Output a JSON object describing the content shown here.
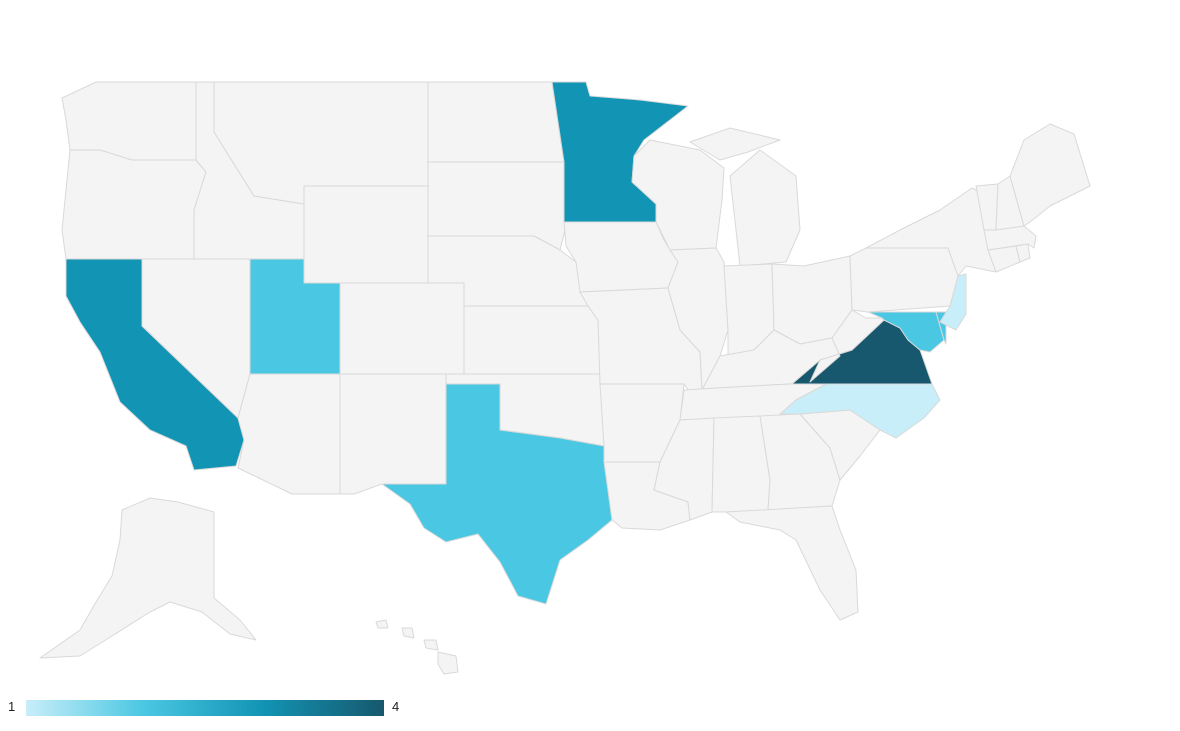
{
  "legend": {
    "min": "1",
    "max": "4",
    "colors": [
      "#c8eef9",
      "#4ac7e2",
      "#1294b4",
      "#17586e"
    ]
  },
  "default_fill": "#f4f4f4",
  "border_color": "#d9d9d9",
  "states": [
    {
      "id": "WA",
      "value": null
    },
    {
      "id": "OR",
      "value": null
    },
    {
      "id": "CA",
      "value": 3
    },
    {
      "id": "NV",
      "value": null
    },
    {
      "id": "ID",
      "value": null
    },
    {
      "id": "MT",
      "value": null
    },
    {
      "id": "WY",
      "value": null
    },
    {
      "id": "UT",
      "value": 2
    },
    {
      "id": "CO",
      "value": null
    },
    {
      "id": "AZ",
      "value": null
    },
    {
      "id": "NM",
      "value": null
    },
    {
      "id": "ND",
      "value": null
    },
    {
      "id": "SD",
      "value": null
    },
    {
      "id": "NE",
      "value": null
    },
    {
      "id": "KS",
      "value": null
    },
    {
      "id": "OK",
      "value": null
    },
    {
      "id": "TX",
      "value": 2
    },
    {
      "id": "MN",
      "value": 3
    },
    {
      "id": "IA",
      "value": null
    },
    {
      "id": "MO",
      "value": null
    },
    {
      "id": "AR",
      "value": null
    },
    {
      "id": "LA",
      "value": null
    },
    {
      "id": "WI",
      "value": null
    },
    {
      "id": "IL",
      "value": null
    },
    {
      "id": "MI",
      "value": null
    },
    {
      "id": "IN",
      "value": null
    },
    {
      "id": "OH",
      "value": null
    },
    {
      "id": "KY",
      "value": null
    },
    {
      "id": "TN",
      "value": null
    },
    {
      "id": "MS",
      "value": null
    },
    {
      "id": "AL",
      "value": null
    },
    {
      "id": "GA",
      "value": null
    },
    {
      "id": "FL",
      "value": null
    },
    {
      "id": "SC",
      "value": null
    },
    {
      "id": "NC",
      "value": 1
    },
    {
      "id": "VA",
      "value": 4
    },
    {
      "id": "WV",
      "value": null
    },
    {
      "id": "PA",
      "value": null
    },
    {
      "id": "NY",
      "value": null
    },
    {
      "id": "MD",
      "value": 2
    },
    {
      "id": "DE",
      "value": 2
    },
    {
      "id": "NJ",
      "value": 1
    },
    {
      "id": "CT",
      "value": null
    },
    {
      "id": "RI",
      "value": null
    },
    {
      "id": "MA",
      "value": null
    },
    {
      "id": "VT",
      "value": null
    },
    {
      "id": "NH",
      "value": null
    },
    {
      "id": "ME",
      "value": null
    },
    {
      "id": "AK",
      "value": null
    },
    {
      "id": "HI",
      "value": null
    }
  ]
}
